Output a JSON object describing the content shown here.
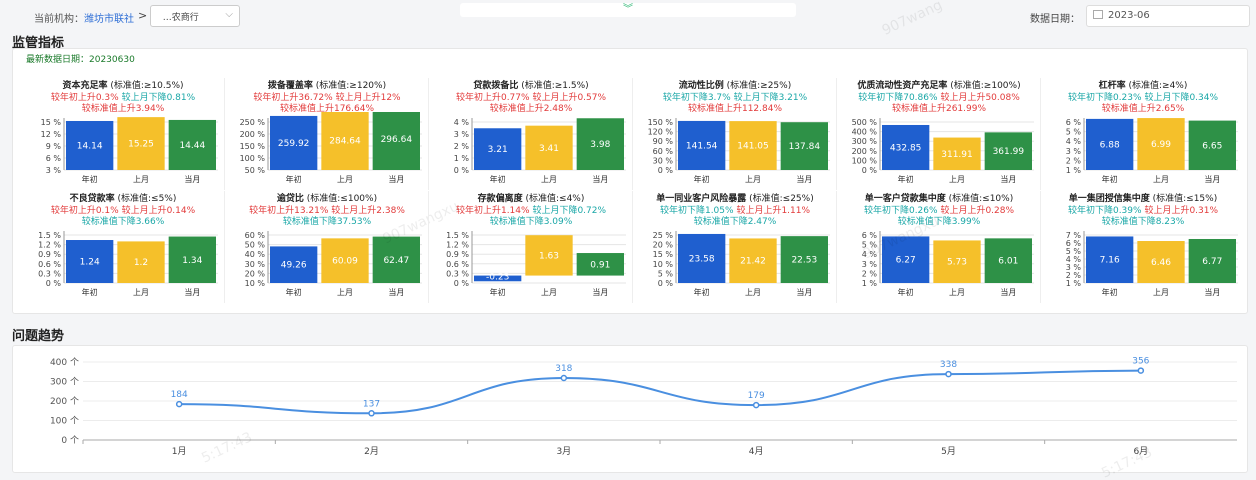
{
  "header": {
    "org_label": "当前机构：",
    "org_link": "潍坊市联社",
    "org_sep": ">",
    "org_select_value": "  …农商行",
    "date_label": "数据日期：",
    "date_value": "2023-06"
  },
  "supervision": {
    "title": "监管指标",
    "update_date": "最新数据日期：20230630"
  },
  "trend": {
    "title": "问题趋势"
  },
  "colors": {
    "blue": "#1f5fcf",
    "yellow": "#f5c02a",
    "green": "#2e9147",
    "line": "#4a8fe0"
  },
  "categories": [
    "年初",
    "上月",
    "当月"
  ],
  "cards": [
    {
      "name": "资本充足率",
      "std": "(标准值:≥10.5%)",
      "l1": "较年初上升0.3% 较上月下降0.81%",
      "l1c": [
        "red",
        "teal"
      ],
      "l2": "较标准值上升3.94%",
      "l2c": "red",
      "ticks": [
        "15 %",
        "12 %",
        "9 %",
        "6 %",
        "3 %"
      ],
      "ymax": 15,
      "ymin": 0,
      "values": [
        14.14,
        15.25,
        14.44
      ],
      "labels": [
        "14.14",
        "15.25",
        "14.44"
      ]
    },
    {
      "name": "拨备覆盖率",
      "std": "(标准值:≥120%)",
      "l1": "较年初上升36.72% 较上月上升12%",
      "l1c": [
        "red",
        "red"
      ],
      "l2": "较标准值上升176.64%",
      "l2c": "red",
      "ticks": [
        "250 %",
        "200 %",
        "150 %",
        "100 %",
        "50 %"
      ],
      "ymax": 250,
      "ymin": 0,
      "values": [
        259.92,
        284.64,
        296.64
      ],
      "labels": [
        "259.92",
        "284.64",
        "296.64"
      ]
    },
    {
      "name": "贷款拨备比",
      "std": "(标准值:≥1.5%)",
      "l1": "较年初上升0.77% 较上月上升0.57%",
      "l1c": [
        "red",
        "red"
      ],
      "l2": "较标准值上升2.48%",
      "l2c": "red",
      "ticks": [
        "4 %",
        "3 %",
        "2 %",
        "1 %",
        "0 %"
      ],
      "ymax": 4,
      "ymin": 0,
      "values": [
        3.21,
        3.41,
        3.98
      ],
      "labels": [
        "3.21",
        "3.41",
        "3.98"
      ]
    },
    {
      "name": "流动性比例",
      "std": "(标准值:≥25%)",
      "l1": "较年初下降3.7% 较上月下降3.21%",
      "l1c": [
        "teal",
        "teal"
      ],
      "l2": "较标准值上升112.84%",
      "l2c": "red",
      "ticks": [
        "150 %",
        "120 %",
        "90 %",
        "60 %",
        "30 %",
        "0 %"
      ],
      "ymax": 150,
      "ymin": 0,
      "values": [
        141.54,
        141.05,
        137.84
      ],
      "labels": [
        "141.54",
        "141.05",
        "137.84"
      ]
    },
    {
      "name": "优质流动性资产充足率",
      "std": "(标准值:≥100%)",
      "l1": "较年初下降70.86% 较上月上升50.08%",
      "l1c": [
        "teal",
        "red"
      ],
      "l2": "较标准值上升261.99%",
      "l2c": "red",
      "ticks": [
        "500 %",
        "400 %",
        "300 %",
        "200 %",
        "100 %",
        "0 %"
      ],
      "ymax": 500,
      "ymin": 0,
      "values": [
        432.85,
        311.91,
        361.99
      ],
      "labels": [
        "432.85",
        "311.91",
        "361.99"
      ]
    },
    {
      "name": "杠杆率",
      "std": "(标准值:≥4%)",
      "l1": "较年初下降0.23% 较上月下降0.34%",
      "l1c": [
        "teal",
        "teal"
      ],
      "l2": "较标准值上升2.65%",
      "l2c": "red",
      "ticks": [
        "6 %",
        "5 %",
        "4 %",
        "3 %",
        "2 %",
        "1 %"
      ],
      "ymax": 7,
      "ymin": 0,
      "values": [
        6.88,
        6.99,
        6.65
      ],
      "labels": [
        "6.88",
        "6.99",
        "6.65"
      ]
    },
    {
      "name": "不良贷款率",
      "std": "(标准值:≤5%)",
      "l1": "较年初上升0.1% 较上月上升0.14%",
      "l1c": [
        "red",
        "red"
      ],
      "l2": "较标准值下降3.66%",
      "l2c": "teal",
      "ticks": [
        "1.5 %",
        "1.2 %",
        "0.9 %",
        "0.6 %",
        "0.3 %",
        "0 %"
      ],
      "ymax": 1.5,
      "ymin": 0,
      "values": [
        1.24,
        1.2,
        1.34
      ],
      "labels": [
        "1.24",
        "1.2",
        "1.34"
      ]
    },
    {
      "name": "逾贷比",
      "std": "(标准值:≤100%)",
      "l1": "较年初上升13.21% 较上月上升2.38%",
      "l1c": [
        "red",
        "red"
      ],
      "l2": "较标准值下降37.53%",
      "l2c": "teal",
      "ticks": [
        "60 %",
        "50 %",
        "40 %",
        "30 %",
        "20 %",
        "10 %"
      ],
      "ymax": 70,
      "ymin": 0,
      "values": [
        49.26,
        60.09,
        62.47
      ],
      "labels": [
        "49.26",
        "60.09",
        "62.47"
      ]
    },
    {
      "name": "存款偏离度",
      "std": "(标准值:≤4%)",
      "l1": "较年初上升1.14% 较上月下降0.72%",
      "l1c": [
        "red",
        "teal"
      ],
      "l2": "较标准值下降3.09%",
      "l2c": "teal",
      "ticks": [
        "1.5 %",
        "1.2 %",
        "0.9 %",
        "0.6 %",
        "0.3 %",
        "0 %"
      ],
      "ymax": 1.8,
      "ymin": -0.3,
      "values": [
        -0.23,
        1.63,
        0.91
      ],
      "labels": [
        "-0.23",
        "1.63",
        "0.91"
      ]
    },
    {
      "name": "单一同业客户风险暴露",
      "std": "(标准值:≤25%)",
      "l1": "较年初下降1.05% 较上月上升1.11%",
      "l1c": [
        "teal",
        "red"
      ],
      "l2": "较标准值下降2.47%",
      "l2c": "teal",
      "ticks": [
        "25 %",
        "20 %",
        "15 %",
        "10 %",
        "5 %",
        "0 %"
      ],
      "ymax": 25,
      "ymin": 0,
      "values": [
        23.58,
        21.42,
        22.53
      ],
      "labels": [
        "23.58",
        "21.42",
        "22.53"
      ]
    },
    {
      "name": "单一客户贷款集中度",
      "std": "(标准值:≤10%)",
      "l1": "较年初下降0.26% 较上月上升0.28%",
      "l1c": [
        "teal",
        "red"
      ],
      "l2": "较标准值下降3.99%",
      "l2c": "teal",
      "ticks": [
        "6 %",
        "5 %",
        "4 %",
        "3 %",
        "2 %",
        "1 %"
      ],
      "ymax": 7,
      "ymin": 0,
      "values": [
        6.27,
        5.73,
        6.01
      ],
      "labels": [
        "6.27",
        "5.73",
        "6.01"
      ]
    },
    {
      "name": "单一集团授信集中度",
      "std": "(标准值:≤15%)",
      "l1": "较年初下降0.39% 较上月上升0.31%",
      "l1c": [
        "teal",
        "red"
      ],
      "l2": "较标准值下降8.23%",
      "l2c": "teal",
      "ticks": [
        "7 %",
        "6 %",
        "5 %",
        "4 %",
        "3 %",
        "2 %",
        "1 %"
      ],
      "ymax": 8,
      "ymin": 0,
      "values": [
        7.16,
        6.46,
        6.77
      ],
      "labels": [
        "7.16",
        "6.46",
        "6.77"
      ]
    }
  ],
  "chart_data": {
    "type": "line",
    "categories": [
      "1月",
      "2月",
      "3月",
      "4月",
      "5月",
      "6月"
    ],
    "values": [
      184,
      137,
      318,
      179,
      338,
      356
    ],
    "ylim": [
      0,
      400
    ],
    "yticks": [
      "400 个",
      "300 个",
      "200 个",
      "100 个",
      "0 个"
    ],
    "xlabel": "",
    "ylabel": ""
  }
}
